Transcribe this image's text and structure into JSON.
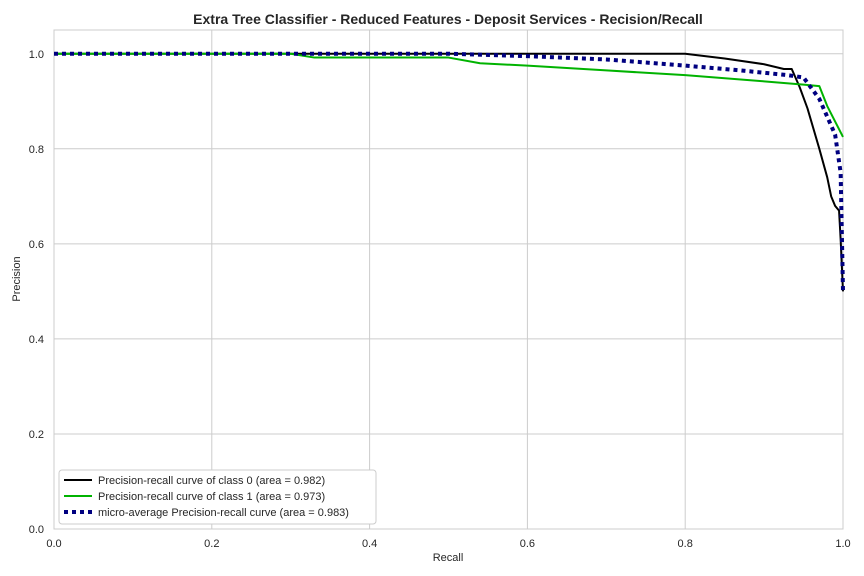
{
  "chart_data": {
    "type": "line",
    "title": "Extra Tree Classifier - Reduced Features - Deposit Services - Recision/Recall",
    "xlabel": "Recall",
    "ylabel": "Precision",
    "xlim": [
      0.0,
      1.0
    ],
    "ylim": [
      0.0,
      1.05
    ],
    "xticks": [
      "0.0",
      "0.2",
      "0.4",
      "0.6",
      "0.8",
      "1.0"
    ],
    "yticks": [
      "0.0",
      "0.2",
      "0.4",
      "0.6",
      "0.8",
      "1.0"
    ],
    "grid": true,
    "legend_position": "lower-left",
    "series": [
      {
        "name": "Precision-recall curve of class 0 (area = 0.982)",
        "color": "#000000",
        "style": "solid",
        "points": [
          [
            0.0,
            1.0
          ],
          [
            0.3,
            1.0
          ],
          [
            0.5,
            1.0
          ],
          [
            0.7,
            1.0
          ],
          [
            0.8,
            1.0
          ],
          [
            0.85,
            0.99
          ],
          [
            0.9,
            0.978
          ],
          [
            0.925,
            0.968
          ],
          [
            0.935,
            0.968
          ],
          [
            0.945,
            0.93
          ],
          [
            0.955,
            0.885
          ],
          [
            0.97,
            0.8
          ],
          [
            0.98,
            0.74
          ],
          [
            0.985,
            0.7
          ],
          [
            0.99,
            0.68
          ],
          [
            0.995,
            0.67
          ],
          [
            0.997,
            0.61
          ],
          [
            1.0,
            0.5
          ]
        ]
      },
      {
        "name": "Precision-recall curve of class 1 (area = 0.973)",
        "color": "#00b300",
        "style": "solid",
        "points": [
          [
            0.0,
            1.0
          ],
          [
            0.3,
            1.0
          ],
          [
            0.33,
            0.992
          ],
          [
            0.5,
            0.992
          ],
          [
            0.54,
            0.98
          ],
          [
            0.6,
            0.975
          ],
          [
            0.7,
            0.965
          ],
          [
            0.8,
            0.955
          ],
          [
            0.9,
            0.942
          ],
          [
            0.95,
            0.935
          ],
          [
            0.97,
            0.932
          ],
          [
            0.98,
            0.89
          ],
          [
            1.0,
            0.825
          ]
        ]
      },
      {
        "name": "micro-average Precision-recall curve (area = 0.983)",
        "color": "#000080",
        "style": "dotted",
        "points": [
          [
            0.0,
            1.0
          ],
          [
            0.3,
            1.0
          ],
          [
            0.5,
            1.0
          ],
          [
            0.6,
            0.995
          ],
          [
            0.7,
            0.988
          ],
          [
            0.8,
            0.975
          ],
          [
            0.87,
            0.965
          ],
          [
            0.93,
            0.955
          ],
          [
            0.95,
            0.95
          ],
          [
            0.97,
            0.905
          ],
          [
            0.99,
            0.83
          ],
          [
            0.997,
            0.75
          ],
          [
            1.0,
            0.5
          ]
        ]
      }
    ]
  }
}
